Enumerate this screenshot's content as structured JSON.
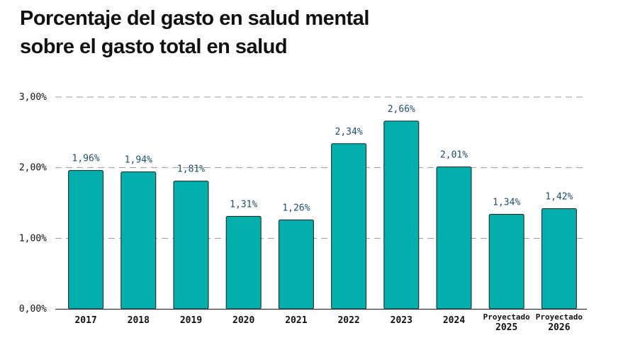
{
  "chart_data": {
    "type": "bar",
    "title_lines": [
      "Porcentaje del gasto en salud mental",
      "sobre el gasto total en salud"
    ],
    "categories": [
      [
        "2017"
      ],
      [
        "2018"
      ],
      [
        "2019"
      ],
      [
        "2020"
      ],
      [
        "2021"
      ],
      [
        "2022"
      ],
      [
        "2023"
      ],
      [
        "2024"
      ],
      [
        "Proyectado",
        "2025"
      ],
      [
        "Proyectado",
        "2026"
      ]
    ],
    "values": [
      1.96,
      1.94,
      1.81,
      1.31,
      1.26,
      2.34,
      2.66,
      2.01,
      1.34,
      1.42
    ],
    "value_labels": [
      "1,96%",
      "1,94%",
      "1,81%",
      "1,31%",
      "1,26%",
      "2,34%",
      "2,66%",
      "2,01%",
      "1,34%",
      "1,42%"
    ],
    "yticks": [
      0,
      1,
      2,
      3
    ],
    "ytick_labels": [
      "0,00%",
      "1,00%",
      "2,00%",
      "3,00%"
    ],
    "ylim": [
      0,
      3
    ],
    "xlabel": "",
    "ylabel": "",
    "grid": true,
    "colors": {
      "bar": "#00aeab",
      "bar_edge": "#1e1e1e",
      "value_label": "#1d4e6b",
      "tick_label": "#111111",
      "grid": "#9a9a9a",
      "axis": "#333333"
    }
  }
}
